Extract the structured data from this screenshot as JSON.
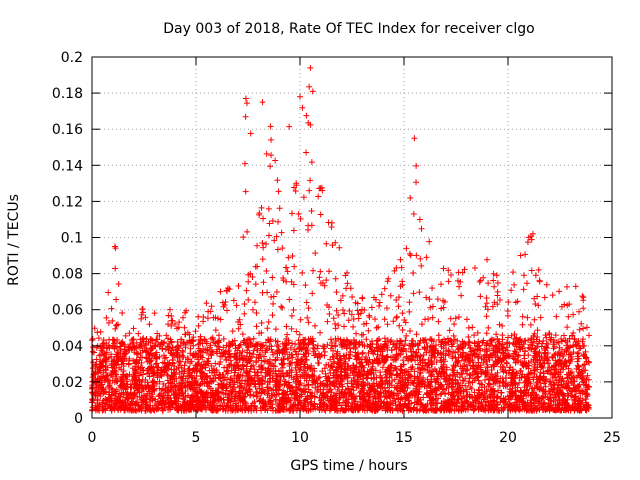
{
  "chart_data": {
    "type": "scatter",
    "title": "Day 003 of 2018, Rate Of TEC Index for receiver clgo",
    "xlabel": "GPS time / hours",
    "ylabel": "ROTI / TECUs",
    "xlim": [
      0,
      25
    ],
    "ylim": [
      0,
      0.2
    ],
    "xticks": [
      0,
      5,
      10,
      15,
      20,
      25
    ],
    "xtick_labels": [
      "0",
      "5",
      "10",
      "15",
      "20",
      "25"
    ],
    "yticks": [
      0,
      0.02,
      0.04,
      0.06,
      0.08,
      0.1,
      0.12,
      0.14,
      0.16,
      0.18,
      0.2
    ],
    "ytick_labels": [
      "0",
      "0.02",
      "0.04",
      "0.06",
      "0.08",
      "0.1",
      "0.12",
      "0.14",
      "0.16",
      "0.18",
      "0.2"
    ],
    "grid": true,
    "marker": "+",
    "color": "#ff0000",
    "series": [
      {
        "name": "ROTI",
        "x_range": [
          0,
          23.9
        ],
        "envelope": [
          [
            0.0,
            0.045
          ],
          [
            0.5,
            0.05
          ],
          [
            1.0,
            0.08
          ],
          [
            1.2,
            0.095
          ],
          [
            1.5,
            0.07
          ],
          [
            2.0,
            0.055
          ],
          [
            3.0,
            0.06
          ],
          [
            4.0,
            0.055
          ],
          [
            5.0,
            0.06
          ],
          [
            6.0,
            0.065
          ],
          [
            7.0,
            0.08
          ],
          [
            7.4,
            0.177
          ],
          [
            8.0,
            0.12
          ],
          [
            8.2,
            0.175
          ],
          [
            8.8,
            0.15
          ],
          [
            9.5,
            0.16
          ],
          [
            10.0,
            0.18
          ],
          [
            10.5,
            0.194
          ],
          [
            11.0,
            0.13
          ],
          [
            12.0,
            0.09
          ],
          [
            13.0,
            0.065
          ],
          [
            14.0,
            0.07
          ],
          [
            15.0,
            0.09
          ],
          [
            15.5,
            0.155
          ],
          [
            16.0,
            0.1
          ],
          [
            17.0,
            0.08
          ],
          [
            18.0,
            0.08
          ],
          [
            19.0,
            0.09
          ],
          [
            20.0,
            0.07
          ],
          [
            21.0,
            0.102
          ],
          [
            22.0,
            0.065
          ],
          [
            23.0,
            0.075
          ],
          [
            23.5,
            0.08
          ],
          [
            23.9,
            0.05
          ]
        ],
        "notable_points": [
          {
            "x": 1.1,
            "y": 0.095
          },
          {
            "x": 7.4,
            "y": 0.177
          },
          {
            "x": 8.2,
            "y": 0.175
          },
          {
            "x": 10.0,
            "y": 0.178
          },
          {
            "x": 10.5,
            "y": 0.194
          },
          {
            "x": 15.5,
            "y": 0.155
          },
          {
            "x": 21.2,
            "y": 0.102
          }
        ]
      }
    ]
  }
}
